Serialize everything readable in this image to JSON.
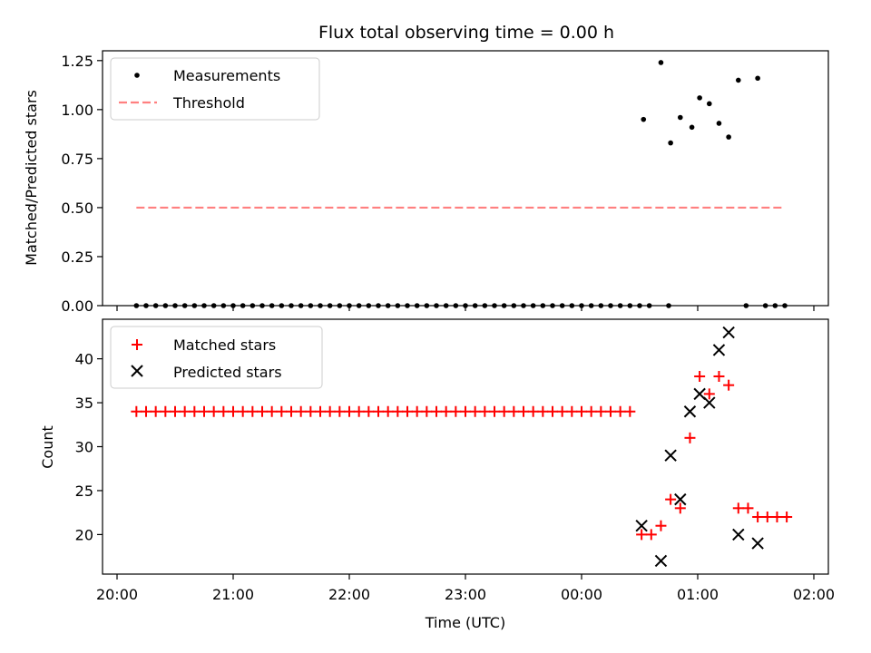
{
  "chart_data": [
    {
      "type": "scatter",
      "title": "Flux total observing time = 0.00 h",
      "ylabel": "Matched/Predicted stars",
      "xlabel": "",
      "xlim": [
        "20:00",
        "02:00"
      ],
      "ylim": [
        0,
        1.3
      ],
      "yticks": [
        "0.00",
        "0.25",
        "0.50",
        "0.75",
        "1.00",
        "1.25"
      ],
      "ytick_values": [
        0,
        0.25,
        0.5,
        0.75,
        1.0,
        1.25
      ],
      "legend_placement": "top-left",
      "legend": [
        {
          "label": "Measurements",
          "marker": "dot",
          "color": "#000000"
        },
        {
          "label": "Threshold",
          "marker": "dashed-line",
          "color": "#ff8080"
        }
      ],
      "threshold": {
        "value": 0.5,
        "x_start": "20:10",
        "x_end": "01:45"
      },
      "measurements_zero_x": [
        "20:10",
        "20:15",
        "20:20",
        "20:25",
        "20:30",
        "20:35",
        "20:40",
        "20:45",
        "20:50",
        "20:55",
        "21:00",
        "21:05",
        "21:10",
        "21:15",
        "21:20",
        "21:25",
        "21:30",
        "21:35",
        "21:40",
        "21:45",
        "21:50",
        "21:55",
        "22:00",
        "22:05",
        "22:10",
        "22:15",
        "22:20",
        "22:25",
        "22:30",
        "22:35",
        "22:40",
        "22:45",
        "22:50",
        "22:55",
        "23:00",
        "23:05",
        "23:10",
        "23:15",
        "23:20",
        "23:25",
        "23:30",
        "23:35",
        "23:40",
        "23:45",
        "23:50",
        "23:55",
        "00:00",
        "00:05",
        "00:10",
        "00:15",
        "00:20",
        "00:25",
        "00:30",
        "00:35",
        "00:45",
        "01:25",
        "01:35",
        "01:40",
        "01:45"
      ],
      "measurements": [
        {
          "x": "00:32",
          "y": 0.95
        },
        {
          "x": "00:41",
          "y": 1.24
        },
        {
          "x": "00:46",
          "y": 0.83
        },
        {
          "x": "00:51",
          "y": 0.96
        },
        {
          "x": "00:57",
          "y": 0.91
        },
        {
          "x": "01:01",
          "y": 1.06
        },
        {
          "x": "01:06",
          "y": 1.03
        },
        {
          "x": "01:11",
          "y": 0.93
        },
        {
          "x": "01:16",
          "y": 0.86
        },
        {
          "x": "01:21",
          "y": 1.15
        },
        {
          "x": "01:31",
          "y": 1.16
        }
      ]
    },
    {
      "type": "scatter",
      "xlabel": "Time (UTC)",
      "ylabel": "Count",
      "xticks": [
        "20:00",
        "21:00",
        "22:00",
        "23:00",
        "00:00",
        "01:00",
        "02:00"
      ],
      "yticks": [
        "20",
        "25",
        "30",
        "35",
        "40"
      ],
      "ytick_values": [
        20,
        25,
        30,
        35,
        40
      ],
      "ylim": [
        15.5,
        44.5
      ],
      "legend_placement": "top-left",
      "series": [
        {
          "name": "Matched stars",
          "marker": "plus",
          "color": "#ff0000",
          "constant_segment": {
            "value": 34,
            "x_start": "20:10",
            "x_end": "00:28",
            "step_minutes": 5
          },
          "points": [
            {
              "x": "00:31",
              "y": 20
            },
            {
              "x": "00:36",
              "y": 20
            },
            {
              "x": "00:41",
              "y": 21
            },
            {
              "x": "00:46",
              "y": 24
            },
            {
              "x": "00:51",
              "y": 23
            },
            {
              "x": "00:56",
              "y": 31
            },
            {
              "x": "01:01",
              "y": 38
            },
            {
              "x": "01:06",
              "y": 36
            },
            {
              "x": "01:11",
              "y": 38
            },
            {
              "x": "01:16",
              "y": 37
            },
            {
              "x": "01:21",
              "y": 23
            },
            {
              "x": "01:26",
              "y": 23
            },
            {
              "x": "01:31",
              "y": 22
            },
            {
              "x": "01:36",
              "y": 22
            },
            {
              "x": "01:41",
              "y": 22
            },
            {
              "x": "01:46",
              "y": 22
            }
          ]
        },
        {
          "name": "Predicted stars",
          "marker": "x",
          "color": "#000000",
          "points": [
            {
              "x": "00:31",
              "y": 21
            },
            {
              "x": "00:41",
              "y": 17
            },
            {
              "x": "00:46",
              "y": 29
            },
            {
              "x": "00:51",
              "y": 24
            },
            {
              "x": "00:56",
              "y": 34
            },
            {
              "x": "01:01",
              "y": 36
            },
            {
              "x": "01:06",
              "y": 35
            },
            {
              "x": "01:11",
              "y": 41
            },
            {
              "x": "01:16",
              "y": 43
            },
            {
              "x": "01:21",
              "y": 20
            },
            {
              "x": "01:31",
              "y": 19
            }
          ]
        }
      ]
    }
  ]
}
